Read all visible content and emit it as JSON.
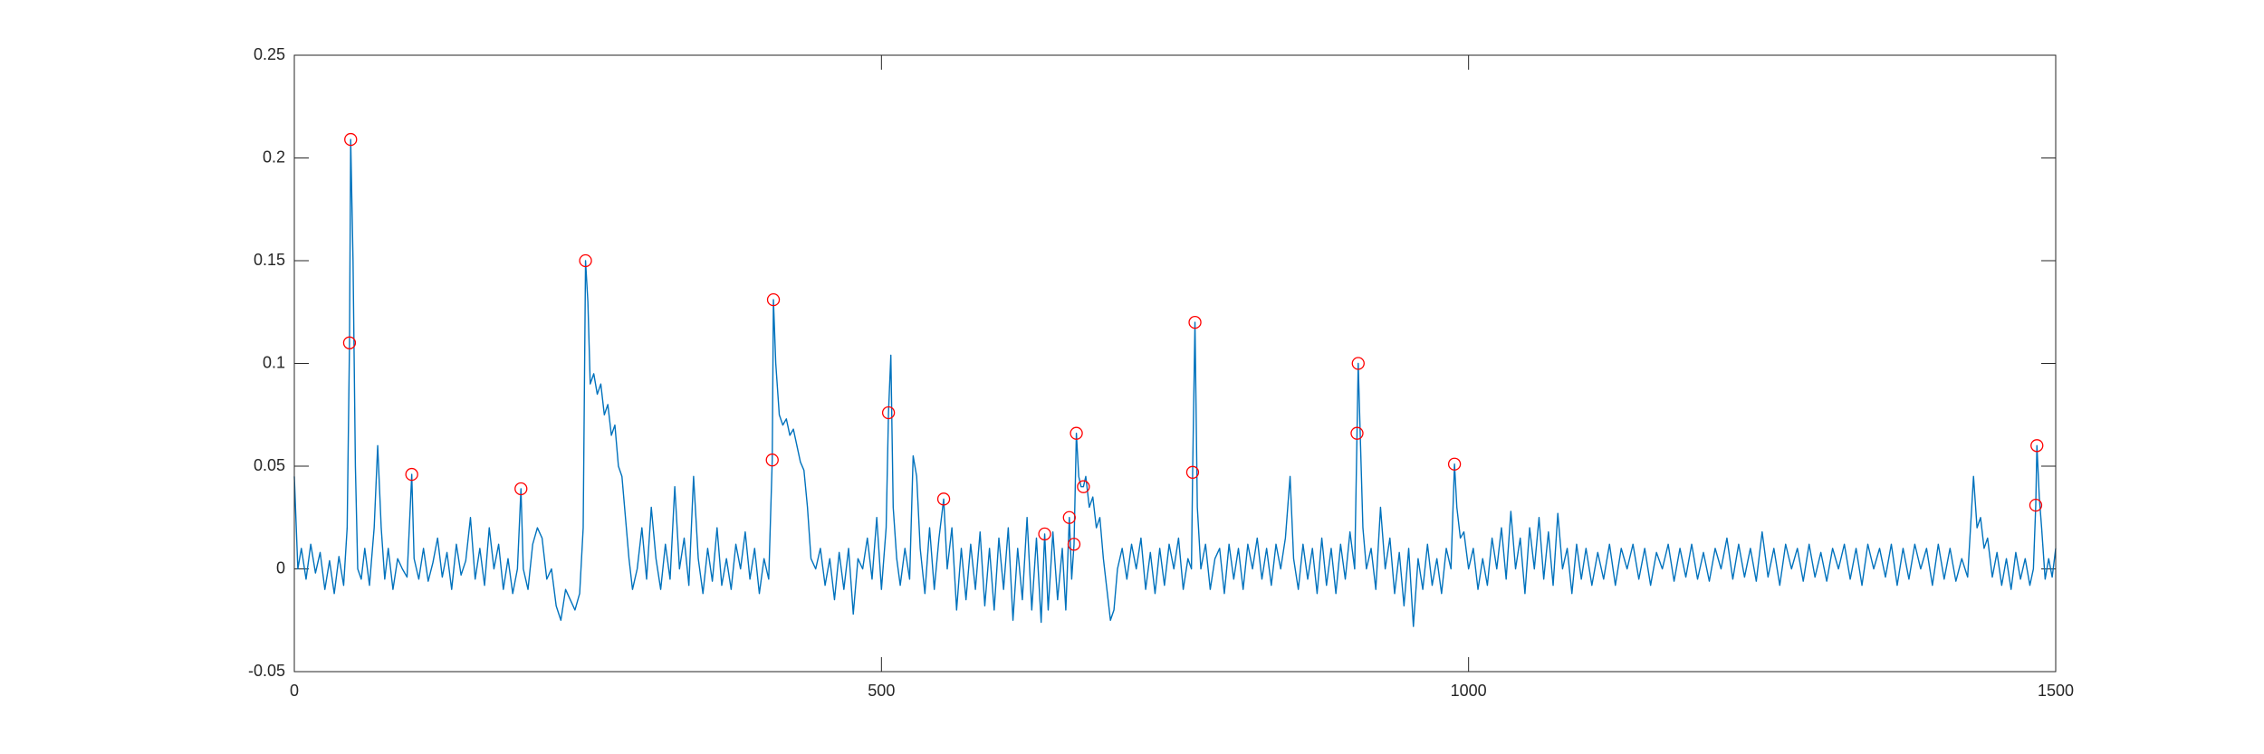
{
  "chart_data": {
    "type": "line",
    "xlim": [
      0,
      1500
    ],
    "xticks": [
      0,
      500,
      1000,
      1500
    ],
    "ylim": [
      -0.05,
      0.25
    ],
    "yticks": [
      -0.05,
      0,
      0.05,
      0.1,
      0.15,
      0.2,
      0.25
    ],
    "grid": false,
    "box": true,
    "series": [
      {
        "style": "line",
        "color": "#0072bd",
        "x": [
          0,
          3,
          6,
          10,
          14,
          18,
          22,
          26,
          30,
          34,
          38,
          42,
          45,
          47,
          48,
          50,
          52,
          54,
          57,
          60,
          64,
          68,
          71,
          74,
          77,
          80,
          84,
          88,
          92,
          96,
          100,
          102,
          106,
          110,
          114,
          118,
          122,
          126,
          130,
          134,
          138,
          142,
          146,
          150,
          154,
          158,
          162,
          166,
          170,
          174,
          178,
          182,
          186,
          190,
          193,
          195,
          199,
          203,
          207,
          211,
          215,
          219,
          223,
          227,
          231,
          235,
          239,
          243,
          246,
          248,
          250,
          252,
          255,
          258,
          261,
          264,
          267,
          270,
          273,
          276,
          279,
          282,
          285,
          288,
          292,
          296,
          300,
          304,
          308,
          312,
          316,
          320,
          324,
          328,
          332,
          336,
          340,
          344,
          348,
          352,
          356,
          360,
          364,
          368,
          372,
          376,
          380,
          384,
          388,
          392,
          396,
          400,
          404,
          407,
          408,
          410,
          413,
          416,
          419,
          422,
          425,
          428,
          431,
          434,
          437,
          440,
          444,
          448,
          452,
          456,
          460,
          464,
          468,
          472,
          476,
          480,
          484,
          488,
          492,
          496,
          500,
          504,
          506,
          508,
          510,
          513,
          516,
          520,
          524,
          527,
          530,
          533,
          537,
          541,
          545,
          549,
          553,
          556,
          560,
          564,
          568,
          572,
          576,
          580,
          584,
          588,
          592,
          596,
          600,
          604,
          608,
          612,
          616,
          620,
          624,
          628,
          632,
          636,
          639,
          642,
          646,
          650,
          654,
          657,
          660,
          662,
          664,
          666,
          668,
          670,
          672,
          674,
          677,
          680,
          683,
          686,
          689,
          692,
          695,
          698,
          701,
          705,
          709,
          713,
          717,
          721,
          725,
          729,
          733,
          737,
          741,
          745,
          749,
          753,
          757,
          761,
          764,
          765,
          767,
          769,
          772,
          776,
          780,
          784,
          788,
          792,
          796,
          800,
          804,
          808,
          812,
          816,
          820,
          824,
          828,
          832,
          836,
          840,
          844,
          848,
          851,
          855,
          859,
          863,
          867,
          871,
          875,
          879,
          883,
          887,
          891,
          895,
          899,
          903,
          905,
          906,
          908,
          910,
          913,
          917,
          921,
          925,
          929,
          933,
          937,
          941,
          945,
          949,
          953,
          957,
          961,
          965,
          969,
          973,
          977,
          981,
          985,
          988,
          990,
          993,
          996,
          1000,
          1004,
          1008,
          1012,
          1016,
          1020,
          1024,
          1028,
          1032,
          1036,
          1040,
          1044,
          1048,
          1052,
          1056,
          1060,
          1064,
          1068,
          1072,
          1076,
          1080,
          1084,
          1088,
          1092,
          1096,
          1100,
          1105,
          1110,
          1115,
          1120,
          1125,
          1130,
          1135,
          1140,
          1145,
          1150,
          1155,
          1160,
          1165,
          1170,
          1175,
          1180,
          1185,
          1190,
          1195,
          1200,
          1205,
          1210,
          1215,
          1220,
          1225,
          1230,
          1235,
          1240,
          1245,
          1250,
          1255,
          1260,
          1265,
          1270,
          1275,
          1280,
          1285,
          1290,
          1295,
          1300,
          1305,
          1310,
          1315,
          1320,
          1325,
          1330,
          1335,
          1340,
          1345,
          1350,
          1355,
          1360,
          1365,
          1370,
          1375,
          1380,
          1385,
          1390,
          1395,
          1400,
          1405,
          1410,
          1415,
          1420,
          1425,
          1430,
          1433,
          1436,
          1439,
          1442,
          1446,
          1450,
          1454,
          1458,
          1462,
          1466,
          1470,
          1474,
          1478,
          1481,
          1483,
          1484,
          1486,
          1488,
          1491,
          1494,
          1497,
          1500
        ],
        "values": [
          0.045,
          0,
          0.01,
          -0.005,
          0.012,
          -0.002,
          0.008,
          -0.01,
          0.004,
          -0.012,
          0.006,
          -0.008,
          0.02,
          0.11,
          0.209,
          0.15,
          0.05,
          0,
          -0.005,
          0.01,
          -0.008,
          0.02,
          0.06,
          0.02,
          -0.005,
          0.01,
          -0.01,
          0.005,
          0,
          -0.004,
          0.046,
          0.005,
          -0.005,
          0.01,
          -0.006,
          0.003,
          0.015,
          -0.004,
          0.008,
          -0.01,
          0.012,
          -0.003,
          0.004,
          0.025,
          -0.005,
          0.01,
          -0.008,
          0.02,
          0,
          0.012,
          -0.01,
          0.005,
          -0.012,
          0,
          0.039,
          0,
          -0.01,
          0.012,
          0.02,
          0.015,
          -0.005,
          0,
          -0.018,
          -0.025,
          -0.01,
          -0.015,
          -0.02,
          -0.012,
          0.02,
          0.15,
          0.13,
          0.09,
          0.095,
          0.085,
          0.09,
          0.075,
          0.08,
          0.065,
          0.07,
          0.05,
          0.045,
          0.025,
          0.005,
          -0.01,
          0,
          0.02,
          -0.005,
          0.03,
          0.005,
          -0.01,
          0.012,
          -0.005,
          0.04,
          0,
          0.015,
          -0.008,
          0.045,
          0.005,
          -0.012,
          0.01,
          -0.006,
          0.02,
          -0.008,
          0.005,
          -0.01,
          0.012,
          0,
          0.018,
          -0.005,
          0.01,
          -0.012,
          0.005,
          -0.005,
          0.053,
          0.131,
          0.1,
          0.075,
          0.07,
          0.073,
          0.065,
          0.068,
          0.06,
          0.052,
          0.048,
          0.03,
          0.005,
          0,
          0.01,
          -0.008,
          0.005,
          -0.015,
          0.008,
          -0.01,
          0.01,
          -0.022,
          0.005,
          0,
          0.015,
          -0.005,
          0.025,
          -0.01,
          0.02,
          0.076,
          0.104,
          0.03,
          0.005,
          -0.008,
          0.01,
          -0.005,
          0.055,
          0.045,
          0.01,
          -0.012,
          0.02,
          -0.01,
          0.015,
          0.034,
          0,
          0.02,
          -0.02,
          0.01,
          -0.015,
          0.012,
          -0.01,
          0.018,
          -0.018,
          0.01,
          -0.02,
          0.015,
          -0.01,
          0.02,
          -0.025,
          0.01,
          -0.015,
          0.025,
          -0.02,
          0.015,
          -0.026,
          0.017,
          -0.02,
          0.018,
          -0.015,
          0.01,
          -0.02,
          0.025,
          -0.005,
          0.012,
          0.066,
          0.045,
          0.04,
          0.04,
          0.045,
          0.03,
          0.035,
          0.02,
          0.025,
          0.005,
          -0.01,
          -0.025,
          -0.02,
          0,
          0.01,
          -0.005,
          0.012,
          0,
          0.015,
          -0.01,
          0.008,
          -0.012,
          0.01,
          -0.008,
          0.012,
          0,
          0.015,
          -0.01,
          0.005,
          0,
          0.047,
          0.12,
          0.03,
          0,
          0.012,
          -0.01,
          0.005,
          0.01,
          -0.012,
          0.012,
          -0.005,
          0.01,
          -0.01,
          0.012,
          0,
          0.015,
          -0.005,
          0.01,
          -0.008,
          0.012,
          0,
          0.015,
          0.045,
          0.005,
          -0.01,
          0.012,
          -0.005,
          0.01,
          -0.012,
          0.015,
          -0.008,
          0.01,
          -0.012,
          0.012,
          -0.005,
          0.018,
          0,
          0.066,
          0.1,
          0.06,
          0.02,
          0,
          0.01,
          -0.01,
          0.03,
          0,
          0.015,
          -0.012,
          0.008,
          -0.018,
          0.01,
          -0.028,
          0.005,
          -0.01,
          0.012,
          -0.008,
          0.005,
          -0.012,
          0.01,
          0,
          0.051,
          0.03,
          0.015,
          0.018,
          0,
          0.01,
          -0.01,
          0.005,
          -0.008,
          0.015,
          0,
          0.02,
          -0.005,
          0.028,
          0,
          0.015,
          -0.012,
          0.02,
          0,
          0.025,
          -0.005,
          0.018,
          -0.008,
          0.027,
          0,
          0.01,
          -0.012,
          0.012,
          -0.005,
          0.01,
          -0.008,
          0.008,
          -0.005,
          0.012,
          -0.008,
          0.01,
          0,
          0.012,
          -0.005,
          0.01,
          -0.008,
          0.008,
          0,
          0.012,
          -0.006,
          0.01,
          -0.004,
          0.012,
          -0.005,
          0.008,
          -0.006,
          0.01,
          0,
          0.015,
          -0.005,
          0.012,
          -0.004,
          0.01,
          -0.006,
          0.018,
          -0.004,
          0.01,
          -0.008,
          0.012,
          0,
          0.01,
          -0.006,
          0.012,
          -0.004,
          0.008,
          -0.006,
          0.01,
          0,
          0.012,
          -0.005,
          0.01,
          -0.008,
          0.012,
          0,
          0.01,
          -0.004,
          0.012,
          -0.008,
          0.01,
          -0.005,
          0.012,
          0,
          0.01,
          -0.008,
          0.012,
          -0.005,
          0.01,
          -0.006,
          0.005,
          -0.004,
          0.045,
          0.02,
          0.025,
          0.01,
          0.015,
          -0.004,
          0.008,
          -0.008,
          0.005,
          -0.01,
          0.008,
          -0.005,
          0.005,
          -0.008,
          0,
          0.031,
          0.06,
          0.035,
          0.02,
          -0.005,
          0.005,
          -0.004,
          0.01
        ]
      },
      {
        "style": "markers",
        "marker": "circle",
        "color": "#ff0000",
        "x": [
          47,
          48,
          100,
          193,
          248,
          407,
          408,
          506,
          553,
          639,
          660,
          664,
          666,
          672,
          765,
          767,
          905,
          906,
          988,
          1483,
          1484
        ],
        "values": [
          0.11,
          0.209,
          0.046,
          0.039,
          0.15,
          0.053,
          0.131,
          0.076,
          0.034,
          0.017,
          0.025,
          0.012,
          0.066,
          0.04,
          0.047,
          0.12,
          0.066,
          0.1,
          0.051,
          0.031,
          0.06
        ]
      }
    ]
  }
}
